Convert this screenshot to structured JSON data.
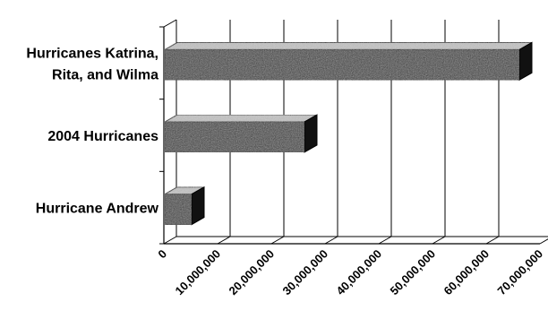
{
  "chart_data": {
    "type": "bar",
    "orientation": "horizontal",
    "style": "3d",
    "categories": [
      [
        "Hurricanes Katrina,",
        "Rita, and Wilma"
      ],
      [
        "2004 Hurricanes"
      ],
      [
        "Hurricane Andrew"
      ]
    ],
    "values": [
      66000000,
      26000000,
      5000000
    ],
    "xlim": [
      0,
      70000000
    ],
    "xticks": [
      0,
      10000000,
      20000000,
      30000000,
      40000000,
      50000000,
      60000000,
      70000000
    ],
    "xtick_labels": [
      "0",
      "10,000,000",
      "20,000,000",
      "30,000,000",
      "40,000,000",
      "50,000,000",
      "60,000,000",
      "70,000,000"
    ],
    "grid": true,
    "legend": "none",
    "colors": {
      "bar": "#3a3a3a",
      "bar_top": "#b8b8b8",
      "bar_side": "#111111",
      "gridline": "#000000"
    }
  }
}
